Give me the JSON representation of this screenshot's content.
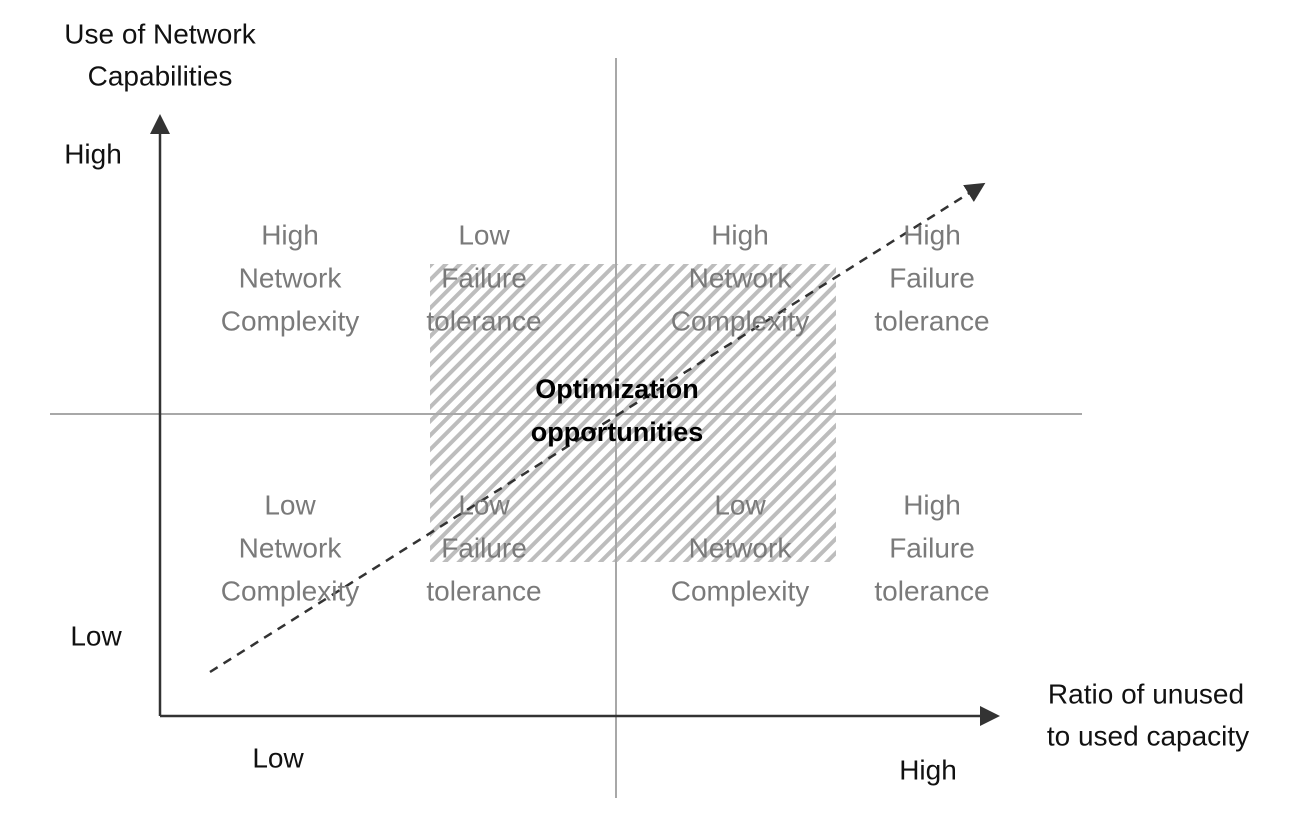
{
  "y_axis": {
    "label": [
      "Use of Network",
      "Capabilities"
    ],
    "high": "High",
    "low": "Low"
  },
  "x_axis": {
    "label": [
      "Ratio of unused",
      "to used capacity"
    ],
    "low": "Low",
    "high": "High"
  },
  "cells": [
    [
      "High",
      "Network",
      "Complexity"
    ],
    [
      "Low",
      "Failure",
      "tolerance"
    ],
    [
      "High",
      "Network",
      "Complexity"
    ],
    [
      "High",
      "Failure",
      "tolerance"
    ],
    [
      "Low",
      "Network",
      "Complexity"
    ],
    [
      "Low",
      "Failure",
      "tolerance"
    ],
    [
      "Low",
      "Network",
      "Complexity"
    ],
    [
      "High",
      "Failure",
      "tolerance"
    ]
  ],
  "center_label": [
    "Optimization",
    "opportunities"
  ]
}
